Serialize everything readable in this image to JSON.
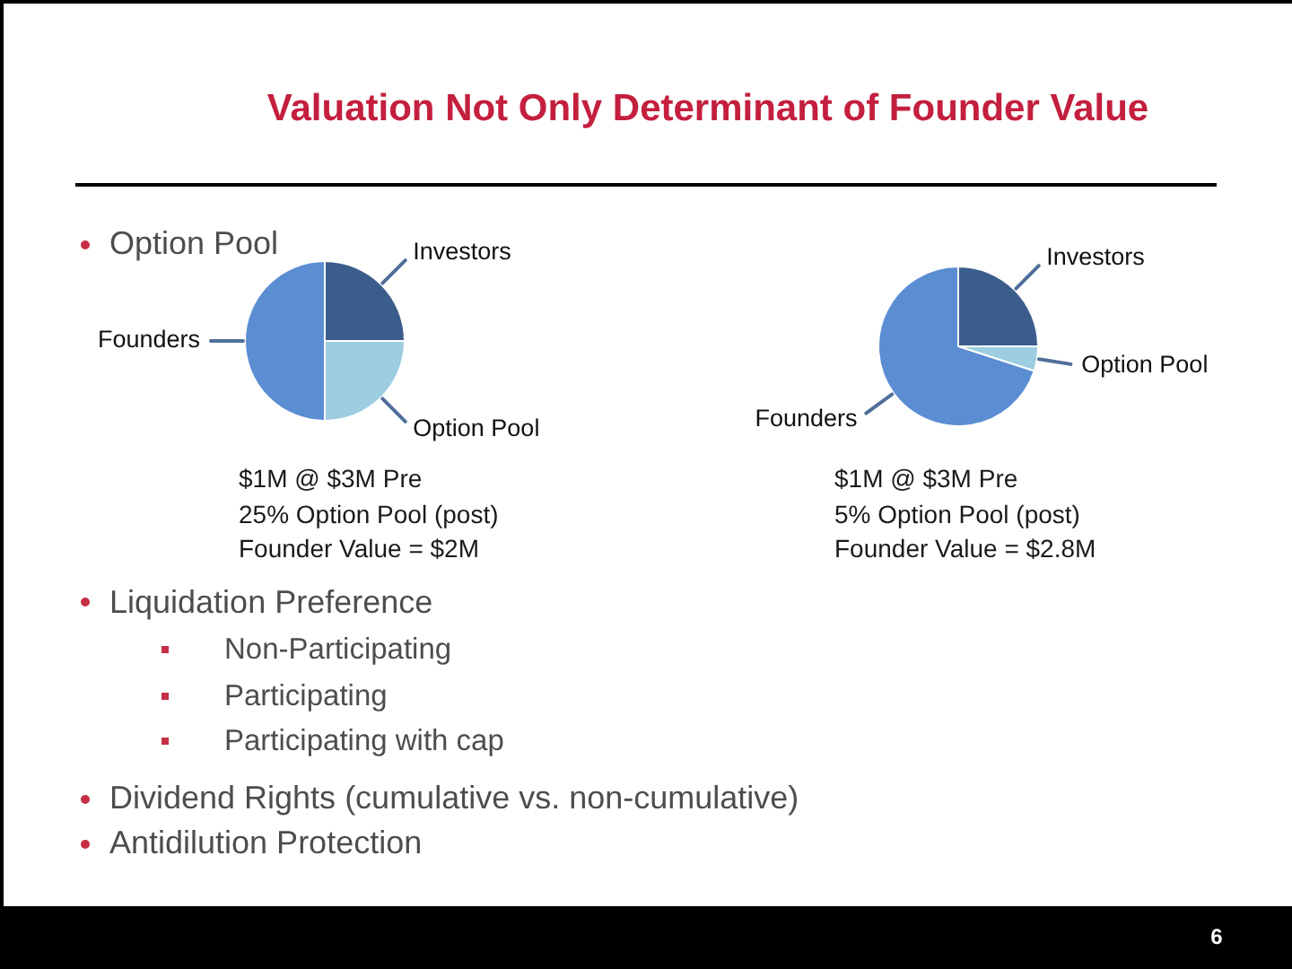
{
  "chart_data": [
    {
      "type": "other",
      "title": "Valuation Not Only Determinant of Founder Value",
      "annotations": [
        "Option Pool"
      ]
    },
    {
      "type": "pie",
      "categories": [
        "Investors",
        "Option Pool",
        "Founders"
      ],
      "values": [
        25,
        25,
        50
      ],
      "colors": [
        "#3a5d8c",
        "#9ccde0",
        "#5b8dd3"
      ],
      "annotations": [
        "$1M @ $3M Pre",
        "25% Option Pool (post)",
        "Founder Value = $2M"
      ]
    },
    {
      "type": "pie",
      "categories": [
        "Investors",
        "Option Pool",
        "Founders"
      ],
      "values": [
        25,
        5,
        70
      ],
      "colors": [
        "#3a5d8c",
        "#9ccde0",
        "#5b8dd3"
      ],
      "annotations": [
        "$1M @ $3M Pre",
        "5% Option Pool (post)",
        "Founder Value = $2.8M"
      ]
    },
    {
      "type": "other",
      "annotations": [
        "Liquidation Preference",
        "Non-Participating",
        "Participating",
        "Participating with cap",
        "Dividend Rights (cumulative vs. non-cumulative)",
        "Antidilution Protection",
        "6"
      ]
    }
  ]
}
